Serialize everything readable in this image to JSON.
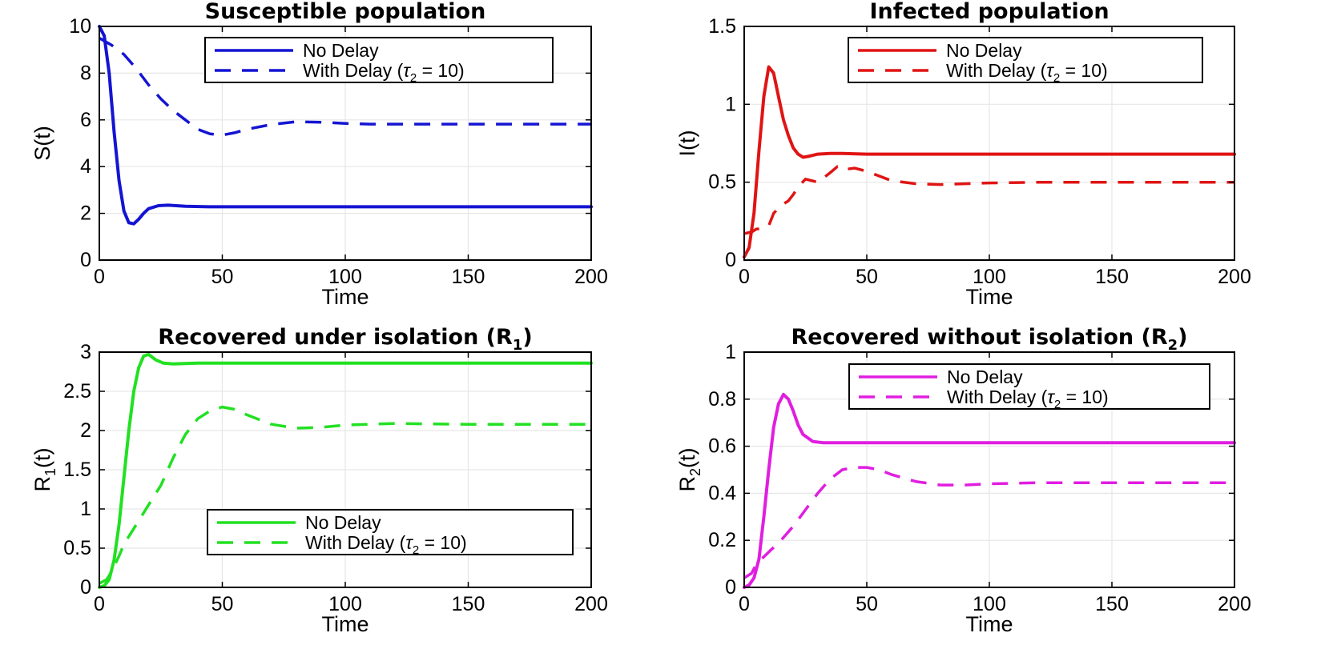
{
  "chart_data": [
    {
      "type": "line",
      "title": "Susceptible population",
      "title_sub": "",
      "title_tail": "",
      "xlabel": "Time",
      "ylabel": "S(t)",
      "ylabel_sub": "",
      "ylabel_tail": "",
      "xlim": [
        0,
        200
      ],
      "ylim": [
        0,
        10
      ],
      "xticks": [
        0,
        50,
        100,
        150,
        200
      ],
      "yticks": [
        0,
        2,
        4,
        6,
        8,
        10
      ],
      "grid": true,
      "legend": {
        "placement": "top-right"
      },
      "color": "#1414d2",
      "series": [
        {
          "name": "No Delay",
          "style": "solid",
          "x": [
            0,
            2,
            4,
            6,
            8,
            10,
            12,
            14,
            16,
            18,
            20,
            24,
            28,
            35,
            45,
            60,
            80,
            100,
            150,
            200
          ],
          "y": [
            10,
            9.6,
            8.0,
            5.5,
            3.4,
            2.1,
            1.6,
            1.55,
            1.75,
            2.0,
            2.2,
            2.33,
            2.35,
            2.3,
            2.28,
            2.28,
            2.28,
            2.28,
            2.28,
            2.28
          ]
        },
        {
          "name": "With Delay",
          "style": "dashed",
          "x": [
            0,
            5,
            10,
            15,
            20,
            25,
            30,
            35,
            40,
            45,
            50,
            55,
            60,
            70,
            80,
            90,
            100,
            110,
            120,
            150,
            200
          ],
          "y": [
            9.5,
            9.2,
            8.8,
            8.2,
            7.5,
            6.9,
            6.4,
            6.0,
            5.6,
            5.4,
            5.35,
            5.45,
            5.6,
            5.8,
            5.92,
            5.9,
            5.85,
            5.82,
            5.82,
            5.82,
            5.82
          ]
        }
      ]
    },
    {
      "type": "line",
      "title": "Infected population",
      "title_sub": "",
      "title_tail": "",
      "xlabel": "Time",
      "ylabel": "I(t)",
      "ylabel_sub": "",
      "ylabel_tail": "",
      "xlim": [
        0,
        200
      ],
      "ylim": [
        0,
        1.5
      ],
      "xticks": [
        0,
        50,
        100,
        150,
        200
      ],
      "yticks": [
        0,
        0.5,
        1,
        1.5
      ],
      "grid": true,
      "legend": {
        "placement": "top-right"
      },
      "color": "#e01414",
      "series": [
        {
          "name": "No Delay",
          "style": "solid",
          "x": [
            0,
            2,
            4,
            6,
            8,
            10,
            12,
            14,
            16,
            18,
            20,
            22,
            24,
            26,
            30,
            35,
            40,
            50,
            100,
            150,
            200
          ],
          "y": [
            0.02,
            0.08,
            0.3,
            0.7,
            1.05,
            1.24,
            1.2,
            1.05,
            0.9,
            0.8,
            0.72,
            0.68,
            0.66,
            0.665,
            0.68,
            0.685,
            0.685,
            0.68,
            0.68,
            0.68,
            0.68
          ]
        },
        {
          "name": "With Delay",
          "style": "dashed",
          "x": [
            0,
            3,
            5,
            7,
            10,
            12,
            15,
            18,
            20,
            22,
            25,
            30,
            35,
            38,
            40,
            45,
            50,
            55,
            60,
            70,
            80,
            90,
            100,
            120,
            150,
            200
          ],
          "y": [
            0.17,
            0.18,
            0.2,
            0.2,
            0.22,
            0.3,
            0.35,
            0.38,
            0.42,
            0.47,
            0.52,
            0.5,
            0.56,
            0.6,
            0.58,
            0.59,
            0.57,
            0.54,
            0.51,
            0.49,
            0.485,
            0.49,
            0.495,
            0.5,
            0.5,
            0.5
          ]
        }
      ]
    },
    {
      "type": "line",
      "title": "Recovered under isolation (R",
      "title_sub": "1",
      "title_tail": ")",
      "xlabel": "Time",
      "ylabel": "R",
      "ylabel_sub": "1",
      "ylabel_tail": "(t)",
      "xlim": [
        0,
        200
      ],
      "ylim": [
        0,
        3
      ],
      "xticks": [
        0,
        50,
        100,
        150,
        200
      ],
      "yticks": [
        0,
        0.5,
        1,
        1.5,
        2,
        2.5,
        3
      ],
      "grid": true,
      "legend": {
        "placement": "bottom-right"
      },
      "color": "#22e022",
      "series": [
        {
          "name": "No Delay",
          "style": "solid",
          "x": [
            0,
            2,
            4,
            6,
            8,
            10,
            12,
            14,
            16,
            18,
            20,
            23,
            26,
            30,
            40,
            60,
            100,
            150,
            200
          ],
          "y": [
            0.0,
            0.02,
            0.1,
            0.35,
            0.8,
            1.4,
            2.0,
            2.5,
            2.8,
            2.95,
            2.97,
            2.9,
            2.86,
            2.85,
            2.86,
            2.86,
            2.86,
            2.86,
            2.86
          ]
        },
        {
          "name": "With Delay",
          "style": "dashed",
          "x": [
            0,
            3,
            5,
            8,
            10,
            15,
            20,
            25,
            30,
            35,
            40,
            45,
            50,
            55,
            60,
            70,
            80,
            90,
            100,
            120,
            150,
            200
          ],
          "y": [
            0.05,
            0.1,
            0.2,
            0.4,
            0.55,
            0.8,
            1.05,
            1.3,
            1.65,
            1.95,
            2.15,
            2.25,
            2.3,
            2.27,
            2.2,
            2.08,
            2.03,
            2.04,
            2.07,
            2.09,
            2.08,
            2.08
          ]
        }
      ]
    },
    {
      "type": "line",
      "title": "Recovered without isolation (R",
      "title_sub": "2",
      "title_tail": ")",
      "xlabel": "Time",
      "ylabel": "R",
      "ylabel_sub": "2",
      "ylabel_tail": "(t)",
      "xlim": [
        0,
        200
      ],
      "ylim": [
        0,
        1
      ],
      "xticks": [
        0,
        50,
        100,
        150,
        200
      ],
      "yticks": [
        0,
        0.2,
        0.4,
        0.6,
        0.8,
        1
      ],
      "grid": true,
      "legend": {
        "placement": "top-right"
      },
      "color": "#e01ee0",
      "series": [
        {
          "name": "No Delay",
          "style": "solid",
          "x": [
            0,
            2,
            4,
            6,
            8,
            10,
            12,
            14,
            16,
            18,
            20,
            22,
            24,
            28,
            32,
            40,
            60,
            100,
            150,
            200
          ],
          "y": [
            0.0,
            0.01,
            0.04,
            0.12,
            0.3,
            0.5,
            0.68,
            0.78,
            0.82,
            0.8,
            0.75,
            0.69,
            0.65,
            0.62,
            0.615,
            0.615,
            0.615,
            0.615,
            0.615,
            0.615
          ]
        },
        {
          "name": "With Delay",
          "style": "dashed",
          "x": [
            0,
            3,
            5,
            8,
            10,
            15,
            20,
            25,
            30,
            35,
            40,
            45,
            50,
            55,
            60,
            70,
            80,
            90,
            100,
            120,
            150,
            200
          ],
          "y": [
            0.04,
            0.06,
            0.1,
            0.13,
            0.15,
            0.2,
            0.26,
            0.33,
            0.4,
            0.46,
            0.5,
            0.51,
            0.51,
            0.5,
            0.48,
            0.45,
            0.435,
            0.435,
            0.44,
            0.445,
            0.445,
            0.445
          ]
        }
      ]
    }
  ],
  "legend_labels": {
    "no_delay": "No Delay",
    "with_delay": "With Delay",
    "tau": "τ",
    "tau_sub": "2",
    "tau_value": "=  10"
  }
}
